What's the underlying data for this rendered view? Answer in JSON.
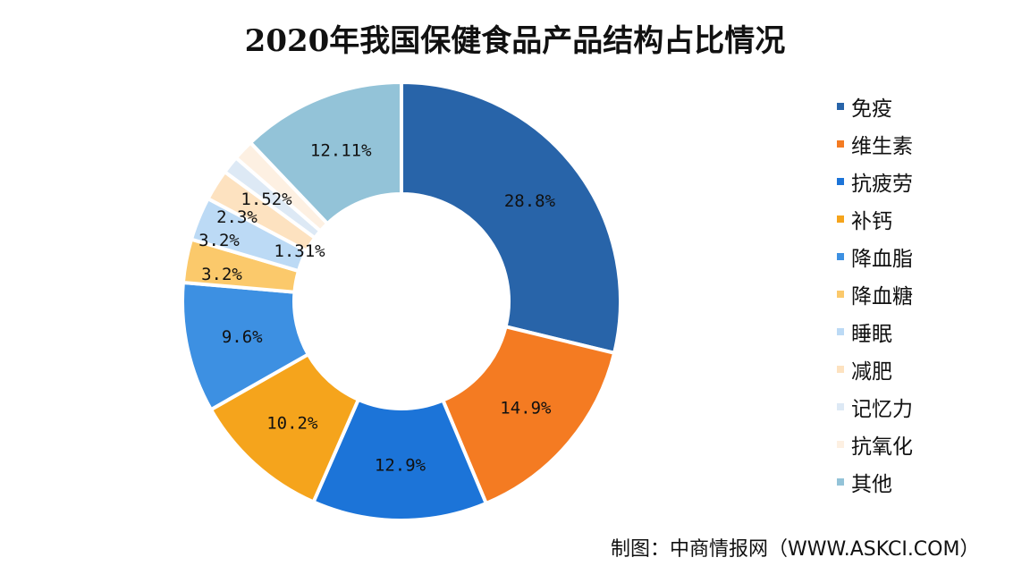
{
  "chart_data": {
    "type": "pie",
    "variant": "donut",
    "title": "2020年我国保健食品产品结构占比情况",
    "categories": [
      "免疫",
      "维生素",
      "抗疲劳",
      "补钙",
      "降血脂",
      "降血糖",
      "睡眠",
      "减肥",
      "记忆力",
      "抗氧化",
      "其他"
    ],
    "values": [
      28.8,
      14.9,
      12.9,
      10.2,
      9.6,
      3.2,
      3.2,
      2.3,
      1.31,
      1.52,
      12.11
    ],
    "value_labels": [
      "28.8%",
      "14.9%",
      "12.9%",
      "10.2%",
      "9.6%",
      "3.2%",
      "3.2%",
      "2.3%",
      "1.31%",
      "1.52%",
      "12.11%"
    ],
    "colors": [
      "#2864a9",
      "#f47b22",
      "#1c74d8",
      "#f5a41c",
      "#3d90e2",
      "#fbc96b",
      "#bcdaf5",
      "#fde2c0",
      "#dde9f5",
      "#fdf0e2",
      "#93c3d8"
    ],
    "legend_position": "right"
  },
  "source": "制图：中商情报网（WWW.ASKCI.COM）"
}
